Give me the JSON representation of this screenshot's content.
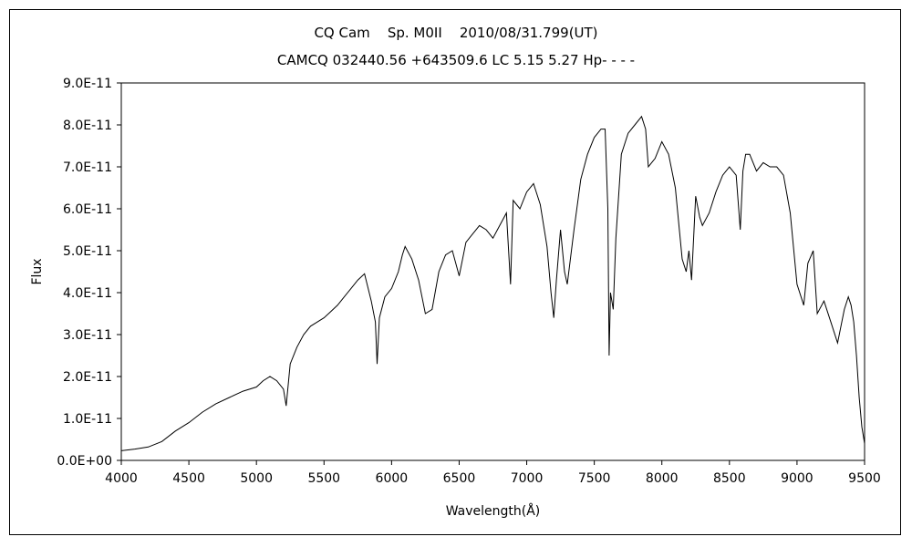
{
  "chart_data": {
    "type": "line",
    "title": "CQ Cam    Sp. M0II    2010/08/31.799(UT)",
    "subtitle": "CAMCQ 032440.56 +643509.6 LC 5.15 5.27 Hp- - - -",
    "xlabel": "Wavelength(Å)",
    "ylabel": "Flux",
    "xlim": [
      4000,
      9500
    ],
    "ylim": [
      0,
      9e-11
    ],
    "x_ticks": [
      4000,
      4500,
      5000,
      5500,
      6000,
      6500,
      7000,
      7500,
      8000,
      8500,
      9000,
      9500
    ],
    "x_tick_labels": [
      "4000",
      "4500",
      "5000",
      "5500",
      "6000",
      "6500",
      "7000",
      "7500",
      "8000",
      "8500",
      "9000",
      "9500"
    ],
    "y_ticks": [
      0,
      1e-11,
      2e-11,
      3e-11,
      4e-11,
      5e-11,
      6e-11,
      7e-11,
      8e-11,
      9e-11
    ],
    "y_tick_labels": [
      "0.0E+00",
      "1.0E-11",
      "2.0E-11",
      "3.0E-11",
      "4.0E-11",
      "5.0E-11",
      "6.0E-11",
      "7.0E-11",
      "8.0E-11",
      "9.0E-11"
    ],
    "grid": false,
    "series_color": "#000000",
    "series": [
      {
        "x": [
          4000,
          4100,
          4200,
          4300,
          4400,
          4500,
          4600,
          4700,
          4800,
          4900,
          5000,
          5050,
          5100,
          5150,
          5200,
          5220,
          5250,
          5300,
          5350,
          5400,
          5450,
          5500,
          5550,
          5600,
          5650,
          5700,
          5750,
          5800,
          5850,
          5880,
          5893,
          5910,
          5950,
          6000,
          6050,
          6080,
          6100,
          6150,
          6200,
          6250,
          6300,
          6350,
          6400,
          6450,
          6500,
          6550,
          6600,
          6650,
          6700,
          6750,
          6800,
          6850,
          6880,
          6900,
          6950,
          7000,
          7050,
          7100,
          7150,
          7180,
          7200,
          7220,
          7250,
          7280,
          7300,
          7350,
          7400,
          7450,
          7500,
          7550,
          7580,
          7600,
          7610,
          7620,
          7640,
          7660,
          7700,
          7750,
          7800,
          7850,
          7880,
          7900,
          7950,
          8000,
          8050,
          8100,
          8150,
          8180,
          8200,
          8220,
          8250,
          8280,
          8300,
          8350,
          8400,
          8450,
          8500,
          8550,
          8580,
          8600,
          8620,
          8650,
          8700,
          8750,
          8800,
          8850,
          8900,
          8950,
          9000,
          9050,
          9080,
          9120,
          9150,
          9200,
          9250,
          9300,
          9350,
          9380,
          9400,
          9420,
          9440,
          9460,
          9480,
          9500
        ],
        "values": [
          2.3e-12,
          2.7e-12,
          3.2e-12,
          4.5e-12,
          7e-12,
          9e-12,
          1.15e-11,
          1.35e-11,
          1.5e-11,
          1.65e-11,
          1.75e-11,
          1.9e-11,
          2e-11,
          1.9e-11,
          1.7e-11,
          1.3e-11,
          2.3e-11,
          2.7e-11,
          3e-11,
          3.2e-11,
          3.3e-11,
          3.4e-11,
          3.55e-11,
          3.7e-11,
          3.9e-11,
          4.1e-11,
          4.3e-11,
          4.45e-11,
          3.8e-11,
          3.3e-11,
          2.3e-11,
          3.4e-11,
          3.9e-11,
          4.1e-11,
          4.5e-11,
          4.9e-11,
          5.1e-11,
          4.8e-11,
          4.3e-11,
          3.5e-11,
          3.6e-11,
          4.5e-11,
          4.9e-11,
          5e-11,
          4.4e-11,
          5.2e-11,
          5.4e-11,
          5.6e-11,
          5.5e-11,
          5.3e-11,
          5.6e-11,
          5.9e-11,
          4.2e-11,
          6.2e-11,
          6e-11,
          6.4e-11,
          6.6e-11,
          6.1e-11,
          5.1e-11,
          4e-11,
          3.4e-11,
          4.3e-11,
          5.5e-11,
          4.5e-11,
          4.2e-11,
          5.5e-11,
          6.7e-11,
          7.3e-11,
          7.7e-11,
          7.9e-11,
          7.9e-11,
          6e-11,
          2.5e-11,
          4e-11,
          3.6e-11,
          5.3e-11,
          7.3e-11,
          7.8e-11,
          8e-11,
          8.2e-11,
          7.9e-11,
          7e-11,
          7.2e-11,
          7.6e-11,
          7.3e-11,
          6.5e-11,
          4.8e-11,
          4.5e-11,
          5e-11,
          4.3e-11,
          6.3e-11,
          5.8e-11,
          5.6e-11,
          5.9e-11,
          6.4e-11,
          6.8e-11,
          7e-11,
          6.8e-11,
          5.5e-11,
          6.9e-11,
          7.3e-11,
          7.3e-11,
          6.9e-11,
          7.1e-11,
          7e-11,
          7e-11,
          6.8e-11,
          5.9e-11,
          4.2e-11,
          3.7e-11,
          4.7e-11,
          5e-11,
          3.5e-11,
          3.8e-11,
          3.3e-11,
          2.8e-11,
          3.6e-11,
          3.9e-11,
          3.7e-11,
          3.3e-11,
          2.5e-11,
          1.5e-11,
          8e-12,
          4e-12
        ]
      }
    ]
  }
}
